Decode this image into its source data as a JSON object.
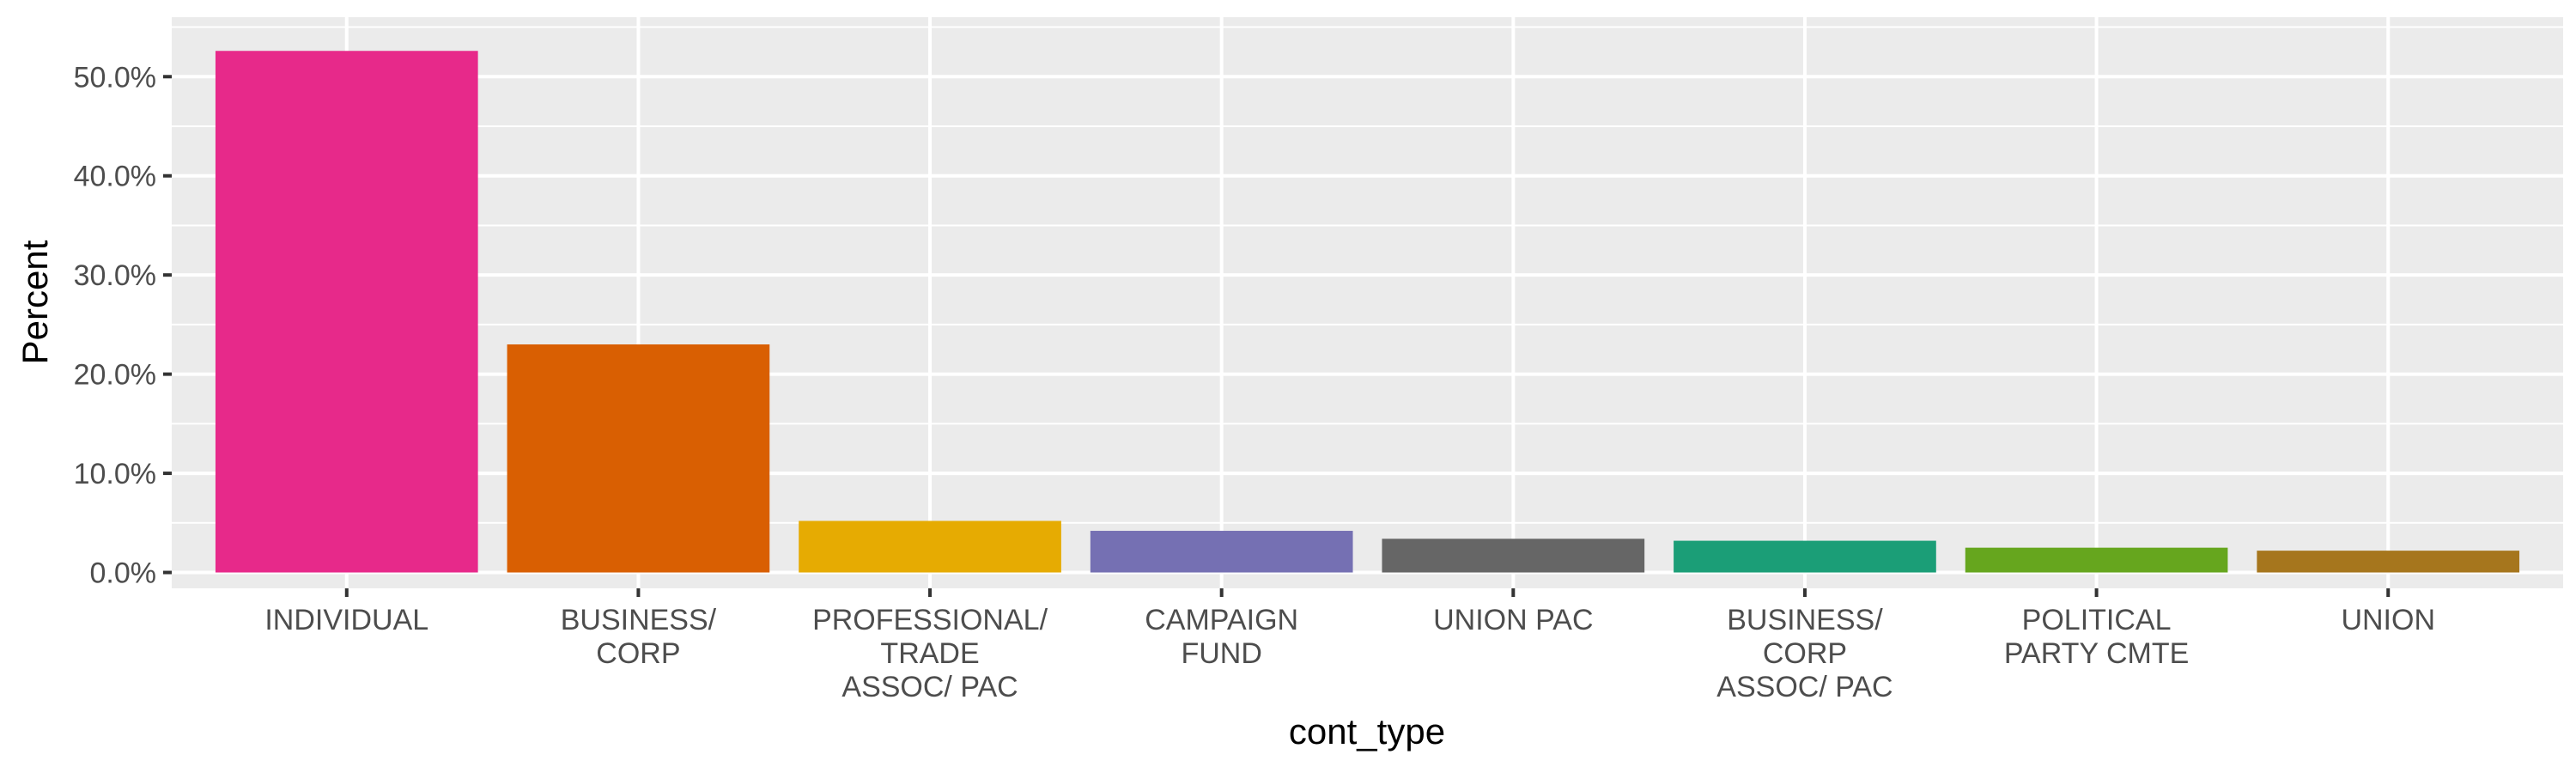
{
  "chart_data": {
    "type": "bar",
    "xlabel": "cont_type",
    "ylabel": "Percent",
    "ylim": [
      -0.016,
      0.56
    ],
    "y_ticks": [
      0.0,
      0.1,
      0.2,
      0.3,
      0.4,
      0.5
    ],
    "y_tick_labels": [
      "0.0%",
      "10.0%",
      "20.0%",
      "30.0%",
      "40.0%",
      "50.0%"
    ],
    "grid": true,
    "legend": "none",
    "categories": [
      [
        "INDIVIDUAL"
      ],
      [
        "BUSINESS/",
        "CORP"
      ],
      [
        "PROFESSIONAL/",
        "TRADE",
        "ASSOC/ PAC"
      ],
      [
        "CAMPAIGN",
        "FUND"
      ],
      [
        "UNION PAC"
      ],
      [
        "BUSINESS/",
        "CORP",
        "ASSOC/ PAC"
      ],
      [
        "POLITICAL",
        "PARTY CMTE"
      ],
      [
        "UNION"
      ]
    ],
    "values": [
      0.526,
      0.23,
      0.052,
      0.042,
      0.034,
      0.032,
      0.025,
      0.022
    ],
    "colors": [
      "#E7298A",
      "#D95F02",
      "#E6AB02",
      "#7570B3",
      "#666666",
      "#1B9E77",
      "#66A61E",
      "#A6761D"
    ],
    "panel_background": "#EBEBEB"
  }
}
